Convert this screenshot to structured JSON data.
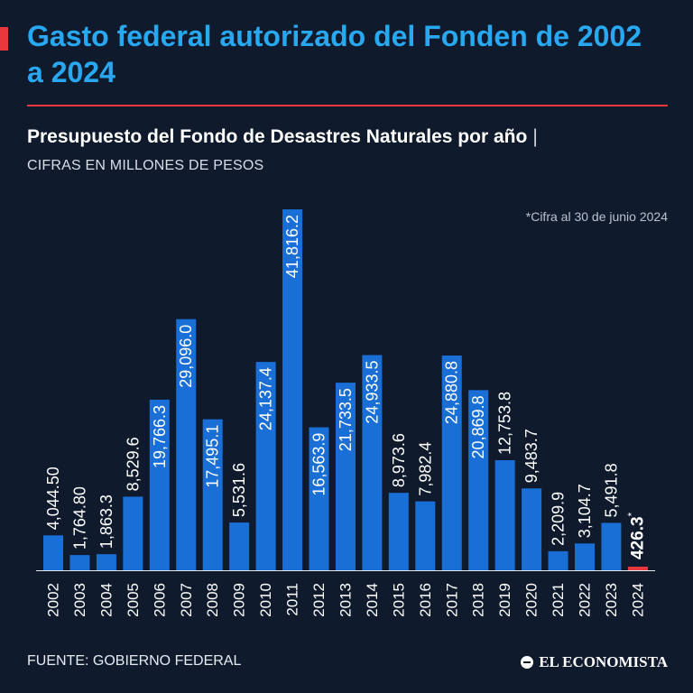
{
  "header": {
    "title": "Gasto federal autorizado del Fonden de 2002 a 2024",
    "subtitle": "Presupuesto del Fondo de Desastres Naturales por año",
    "subtitle_separator": "|",
    "units": "CIFRAS EN MILLONES DE PESOS",
    "note": "*Cifra al 30 de junio 2024"
  },
  "footer": {
    "source": "FUENTE: GOBIERNO FEDERAL",
    "brand": "EL ECONOMISTA",
    "brand_icon": "el-economista-logo-icon"
  },
  "colors": {
    "background": "#0f1b2d",
    "bar": "#1a6fd6",
    "highlight_bar": "#e8383d",
    "title": "#28a8f0",
    "accent": "#e8383d"
  },
  "chart_data": {
    "type": "bar",
    "categories": [
      "2002",
      "2003",
      "2004",
      "2005",
      "2006",
      "2007",
      "2008",
      "2009",
      "2010",
      "2011",
      "2012",
      "2013",
      "2014",
      "2015",
      "2016",
      "2017",
      "2018",
      "2019",
      "2020",
      "2021",
      "2022",
      "2023",
      "2024"
    ],
    "values": [
      4044.5,
      1764.8,
      1863.3,
      8529.6,
      19766.3,
      29096.0,
      17495.1,
      5531.6,
      24137.4,
      41816.2,
      16563.9,
      21733.5,
      24933.5,
      8973.6,
      7982.4,
      24880.8,
      20869.8,
      12753.8,
      9483.7,
      2209.9,
      3104.7,
      5491.8,
      426.3
    ],
    "value_labels": [
      "4,044.50",
      "1,764.80",
      "1,863.3",
      "8,529.6",
      "19,766.3",
      "29,096.0",
      "17,495.1",
      "5,531.6",
      "24,137.4",
      "41,816.2",
      "16,563.9",
      "21,733.5",
      "24,933.5",
      "8,973.6",
      "7,982.4",
      "24,880.8",
      "20,869.8",
      "12,753.8",
      "9,483.7",
      "2,209.9",
      "3,104.7",
      "5,491.8",
      "426.3"
    ],
    "highlight_index": 22,
    "highlight_mark": "*",
    "ylim": [
      0,
      41816.2
    ],
    "grid": false,
    "legend": "none"
  }
}
